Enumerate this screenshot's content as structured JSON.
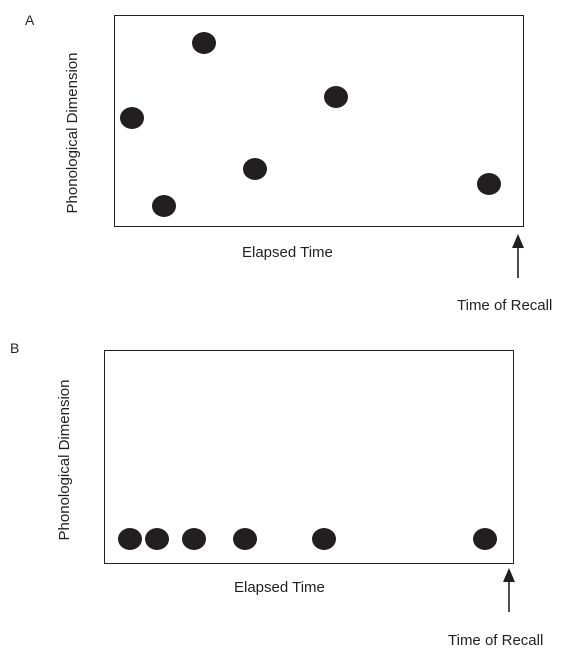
{
  "panels": [
    {
      "letter": "A",
      "y_axis_label": "Phonological Dimension",
      "x_axis_label": "Elapsed Time",
      "marker_label": "Time of Recall",
      "dot_count": 6
    },
    {
      "letter": "B",
      "y_axis_label": "Phonological Dimension",
      "x_axis_label": "Elapsed Time",
      "marker_label": "Time of Recall",
      "dot_count": 6
    }
  ],
  "colors": {
    "ink": "#231f20",
    "background": "#ffffff"
  },
  "icons": {
    "marker": "up-arrow-icon"
  }
}
